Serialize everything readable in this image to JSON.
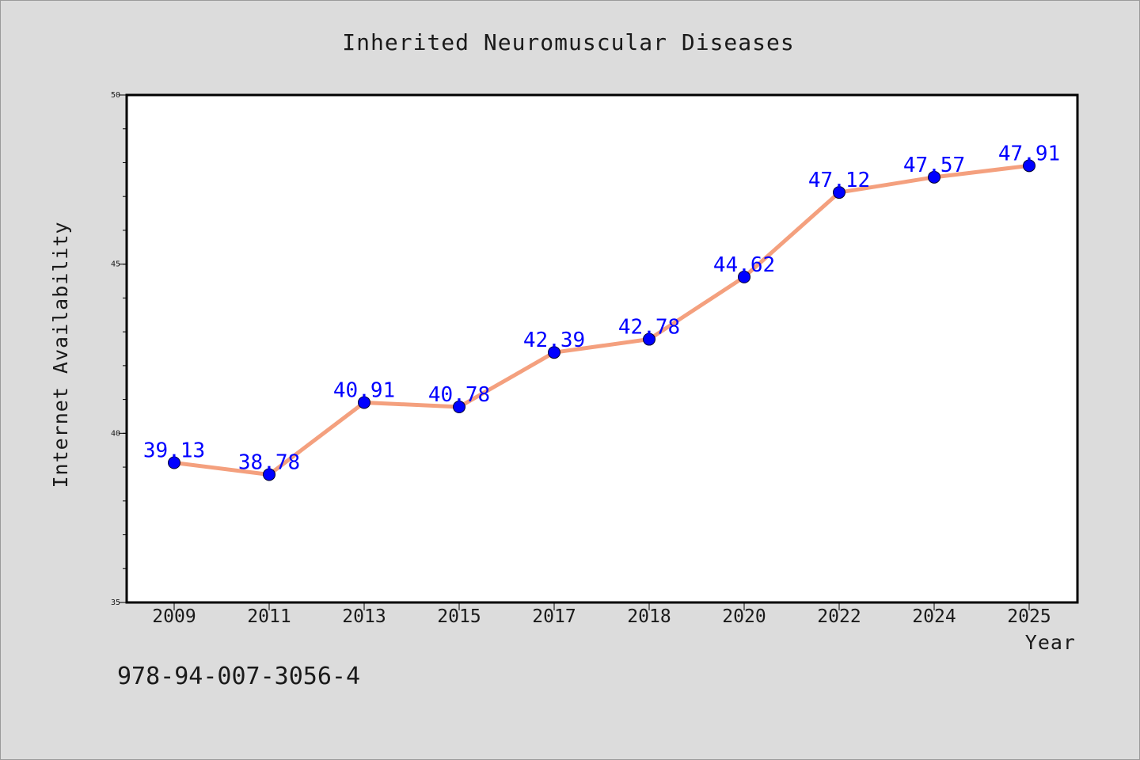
{
  "chart_data": {
    "type": "line",
    "title": "Inherited Neuromuscular Diseases",
    "xlabel": "Year",
    "ylabel": "Internet Availability",
    "categories": [
      "2009",
      "2011",
      "2013",
      "2015",
      "2017",
      "2018",
      "2020",
      "2022",
      "2024",
      "2025"
    ],
    "values": [
      39.13,
      38.78,
      40.91,
      40.78,
      42.39,
      42.78,
      44.62,
      47.12,
      47.57,
      47.91
    ],
    "data_labels": [
      "39.13",
      "38.78",
      "40.91",
      "40.78",
      "42.39",
      "42.78",
      "44.62",
      "47.12",
      "47.57",
      "47.91"
    ],
    "ylim": [
      35,
      50
    ],
    "yticks": [
      "35",
      "40",
      "45",
      "50"
    ],
    "grid": false,
    "legend": "none",
    "colors": {
      "line": "#f4a07e",
      "marker": "#0000ff",
      "data_label": "#0000ff",
      "background": "#dcdcdc",
      "plot_area": "#ffffff"
    }
  },
  "footer": {
    "code": "978-94-007-3056-4"
  }
}
